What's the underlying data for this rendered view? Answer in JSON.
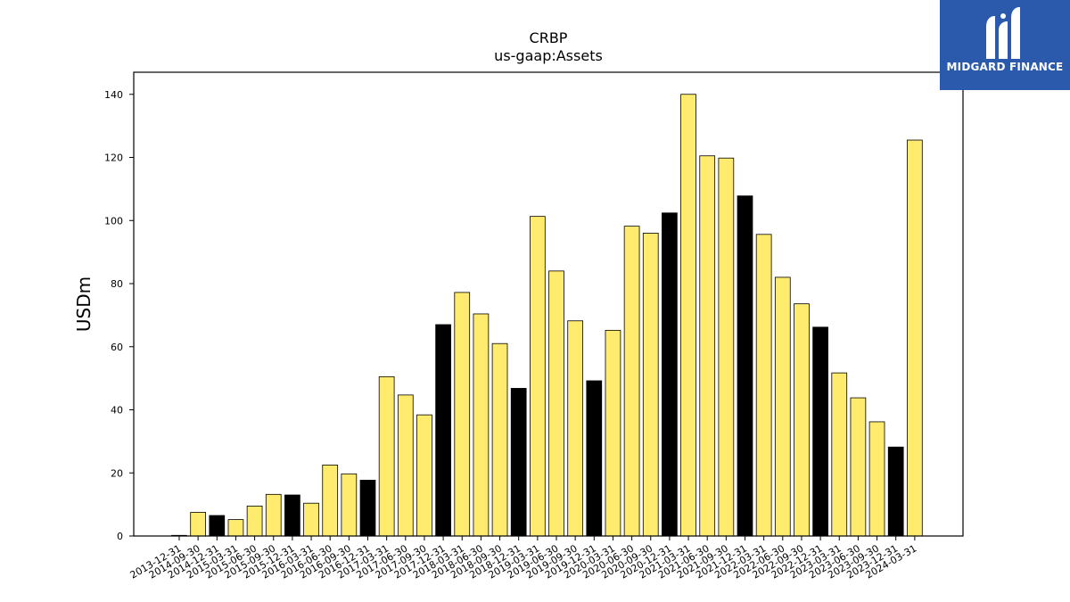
{
  "brand": {
    "name": "MIDGARD FINANCE",
    "logo_icon": "midgard-m-logo-icon",
    "background_color": "#2b5aad"
  },
  "chart_data": {
    "type": "bar",
    "title": "CRBP",
    "subtitle": "us-gaap:Assets",
    "xlabel": "",
    "ylabel": "USDm",
    "ylim": [
      0,
      147
    ],
    "yticks": [
      0,
      20,
      40,
      60,
      80,
      100,
      120,
      140
    ],
    "grid": false,
    "colors": {
      "default": "#ffec6e",
      "highlight": "#000000",
      "edge": "#000000"
    },
    "categories": [
      "2013-12-31",
      "2014-09-30",
      "2014-12-31",
      "2015-03-31",
      "2015-06-30",
      "2015-09-30",
      "2015-12-31",
      "2016-03-31",
      "2016-06-30",
      "2016-09-30",
      "2016-12-31",
      "2017-03-31",
      "2017-06-30",
      "2017-09-30",
      "2017-12-31",
      "2018-03-31",
      "2018-06-30",
      "2018-09-30",
      "2018-12-31",
      "2019-03-31",
      "2019-06-30",
      "2019-09-30",
      "2019-12-31",
      "2020-03-31",
      "2020-06-30",
      "2020-09-30",
      "2020-12-31",
      "2021-03-31",
      "2021-06-30",
      "2021-09-30",
      "2021-12-31",
      "2022-03-31",
      "2022-06-30",
      "2022-09-30",
      "2022-12-31",
      "2023-03-31",
      "2023-06-30",
      "2023-09-30",
      "2023-12-31",
      "2024-03-31"
    ],
    "values": [
      0.2,
      7.5,
      6.5,
      5.2,
      9.5,
      13.2,
      13.0,
      10.4,
      22.5,
      19.7,
      17.7,
      50.5,
      44.7,
      38.4,
      67.0,
      77.2,
      70.4,
      61.0,
      46.8,
      101.3,
      84.0,
      68.2,
      49.2,
      65.2,
      98.2,
      96.0,
      102.4,
      140.0,
      120.5,
      119.8,
      107.8,
      95.6,
      82.0,
      73.6,
      66.2,
      51.7,
      43.8,
      36.2,
      28.2,
      125.5
    ],
    "highlight": [
      false,
      false,
      true,
      false,
      false,
      false,
      true,
      false,
      false,
      false,
      true,
      false,
      false,
      false,
      true,
      false,
      false,
      false,
      true,
      false,
      false,
      false,
      true,
      false,
      false,
      false,
      true,
      false,
      false,
      false,
      true,
      false,
      false,
      false,
      true,
      false,
      false,
      false,
      true,
      false
    ]
  }
}
